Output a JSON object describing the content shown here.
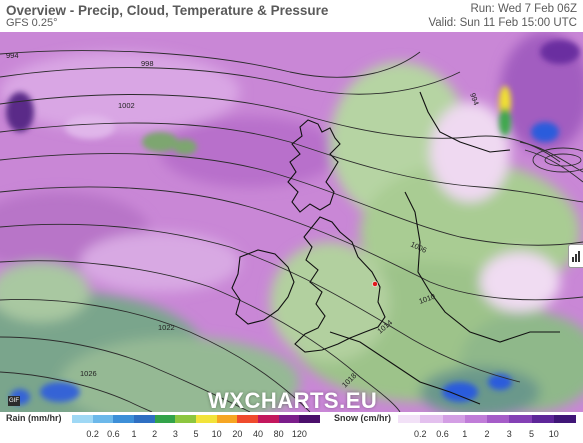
{
  "header": {
    "title": "Overview - Precip, Cloud, Temperature & Pressure",
    "model": "GFS 0.25°",
    "run": "Run: Wed 7 Feb 06Z",
    "valid": "Valid: Sun 11 Feb 15:00 UTC"
  },
  "map": {
    "isobar_labels": [
      "994",
      "998",
      "1002",
      "994",
      "1006",
      "1010",
      "1014",
      "1018",
      "1022",
      "1026"
    ],
    "watermark": "WXCHARTS.EU",
    "logo": "GIF",
    "colors": {
      "rain_purple": "#c77fd3",
      "rain_light": "#e4c6ee",
      "cloud_green": "#9fc48a",
      "ocean_teal": "#6e9a8e",
      "snow_blue": "#2b5bdc"
    }
  },
  "legend": {
    "rain": {
      "title": "Rain (mm/hr)",
      "labels": [
        "0.2",
        "0.6",
        "1",
        "2",
        "3",
        "5",
        "10",
        "20",
        "40",
        "80",
        "120"
      ],
      "colors": [
        "#9fd8f5",
        "#6cb8ea",
        "#3d8fd8",
        "#2f6fc2",
        "#33a34a",
        "#8dc63f",
        "#f2e33a",
        "#f6a623",
        "#ef4b2d",
        "#c3175d",
        "#7b1d8a",
        "#4b0f6b"
      ]
    },
    "snow": {
      "title": "Snow (cm/hr)",
      "labels": [
        "0.2",
        "0.6",
        "1",
        "2",
        "3",
        "5",
        "10"
      ],
      "colors": [
        "#f2e1f7",
        "#e3c0ee",
        "#d39ee4",
        "#c07cd8",
        "#a55cc8",
        "#8440b5",
        "#5e2699",
        "#3f1677"
      ]
    }
  }
}
